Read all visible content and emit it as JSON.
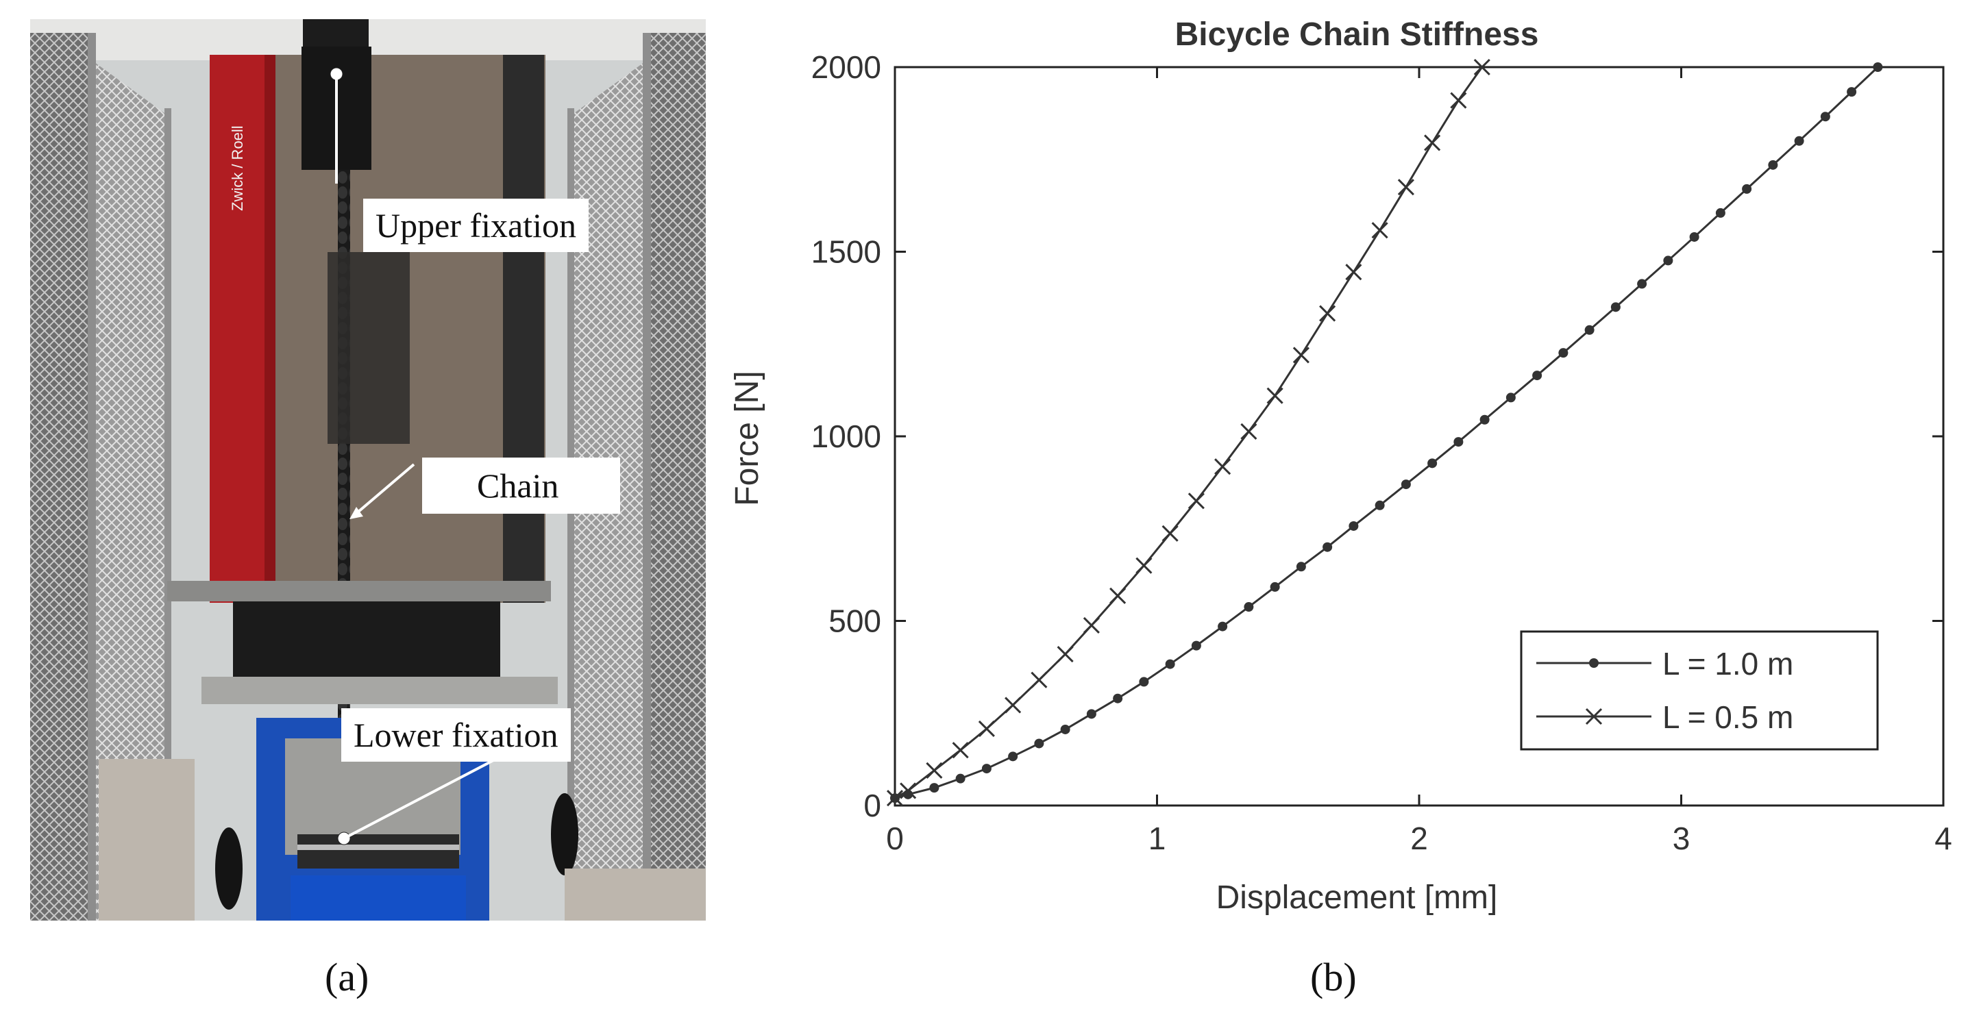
{
  "panel_a": {
    "caption": "(a)",
    "labels": {
      "upper": "Upper fixation",
      "chain": "Chain",
      "lower": "Lower fixation"
    },
    "machine_brand": "Zwick / Roell"
  },
  "panel_b": {
    "caption": "(b)"
  },
  "chart_data": {
    "type": "line",
    "title": "Bicycle Chain Stiffness",
    "xlabel": "Displacement [mm]",
    "ylabel": "Force [N]",
    "xlim": [
      0,
      4
    ],
    "ylim": [
      0,
      2000
    ],
    "xticks": [
      0,
      1,
      2,
      3,
      4
    ],
    "yticks": [
      0,
      500,
      1000,
      1500,
      2000
    ],
    "grid": false,
    "legend": "bottom-right",
    "colors": {
      "line": "#333333",
      "axis": "#222222"
    },
    "series": [
      {
        "name": "L = 1.0 m",
        "marker": "dot",
        "x": [
          0,
          0.05,
          0.15,
          0.25,
          0.35,
          0.45,
          0.55,
          0.65,
          0.75,
          0.85,
          0.95,
          1.05,
          1.15,
          1.25,
          1.35,
          1.45,
          1.55,
          1.65,
          1.75,
          1.85,
          1.95,
          2.05,
          2.15,
          2.25,
          2.35,
          2.45,
          2.55,
          2.65,
          2.75,
          2.85,
          2.95,
          3.05,
          3.15,
          3.25,
          3.35,
          3.45,
          3.55,
          3.65,
          3.75
        ],
        "y": [
          20,
          30,
          48,
          73,
          100,
          133,
          168,
          206,
          248,
          290,
          335,
          383,
          433,
          485,
          538,
          592,
          647,
          700,
          757,
          813,
          870,
          927,
          985,
          1045,
          1105,
          1165,
          1226,
          1288,
          1350,
          1413,
          1476,
          1540,
          1605,
          1670,
          1735,
          1800,
          1866,
          1933,
          2000
        ]
      },
      {
        "name": "L = 0.5 m",
        "marker": "x",
        "x": [
          0,
          0.05,
          0.15,
          0.25,
          0.35,
          0.45,
          0.55,
          0.65,
          0.75,
          0.85,
          0.95,
          1.05,
          1.15,
          1.25,
          1.35,
          1.45,
          1.55,
          1.65,
          1.75,
          1.85,
          1.95,
          2.05,
          2.15,
          2.24
        ],
        "y": [
          20,
          40,
          95,
          150,
          208,
          272,
          340,
          410,
          488,
          568,
          650,
          737,
          825,
          918,
          1013,
          1110,
          1220,
          1333,
          1445,
          1558,
          1675,
          1795,
          1910,
          2000
        ]
      }
    ]
  }
}
